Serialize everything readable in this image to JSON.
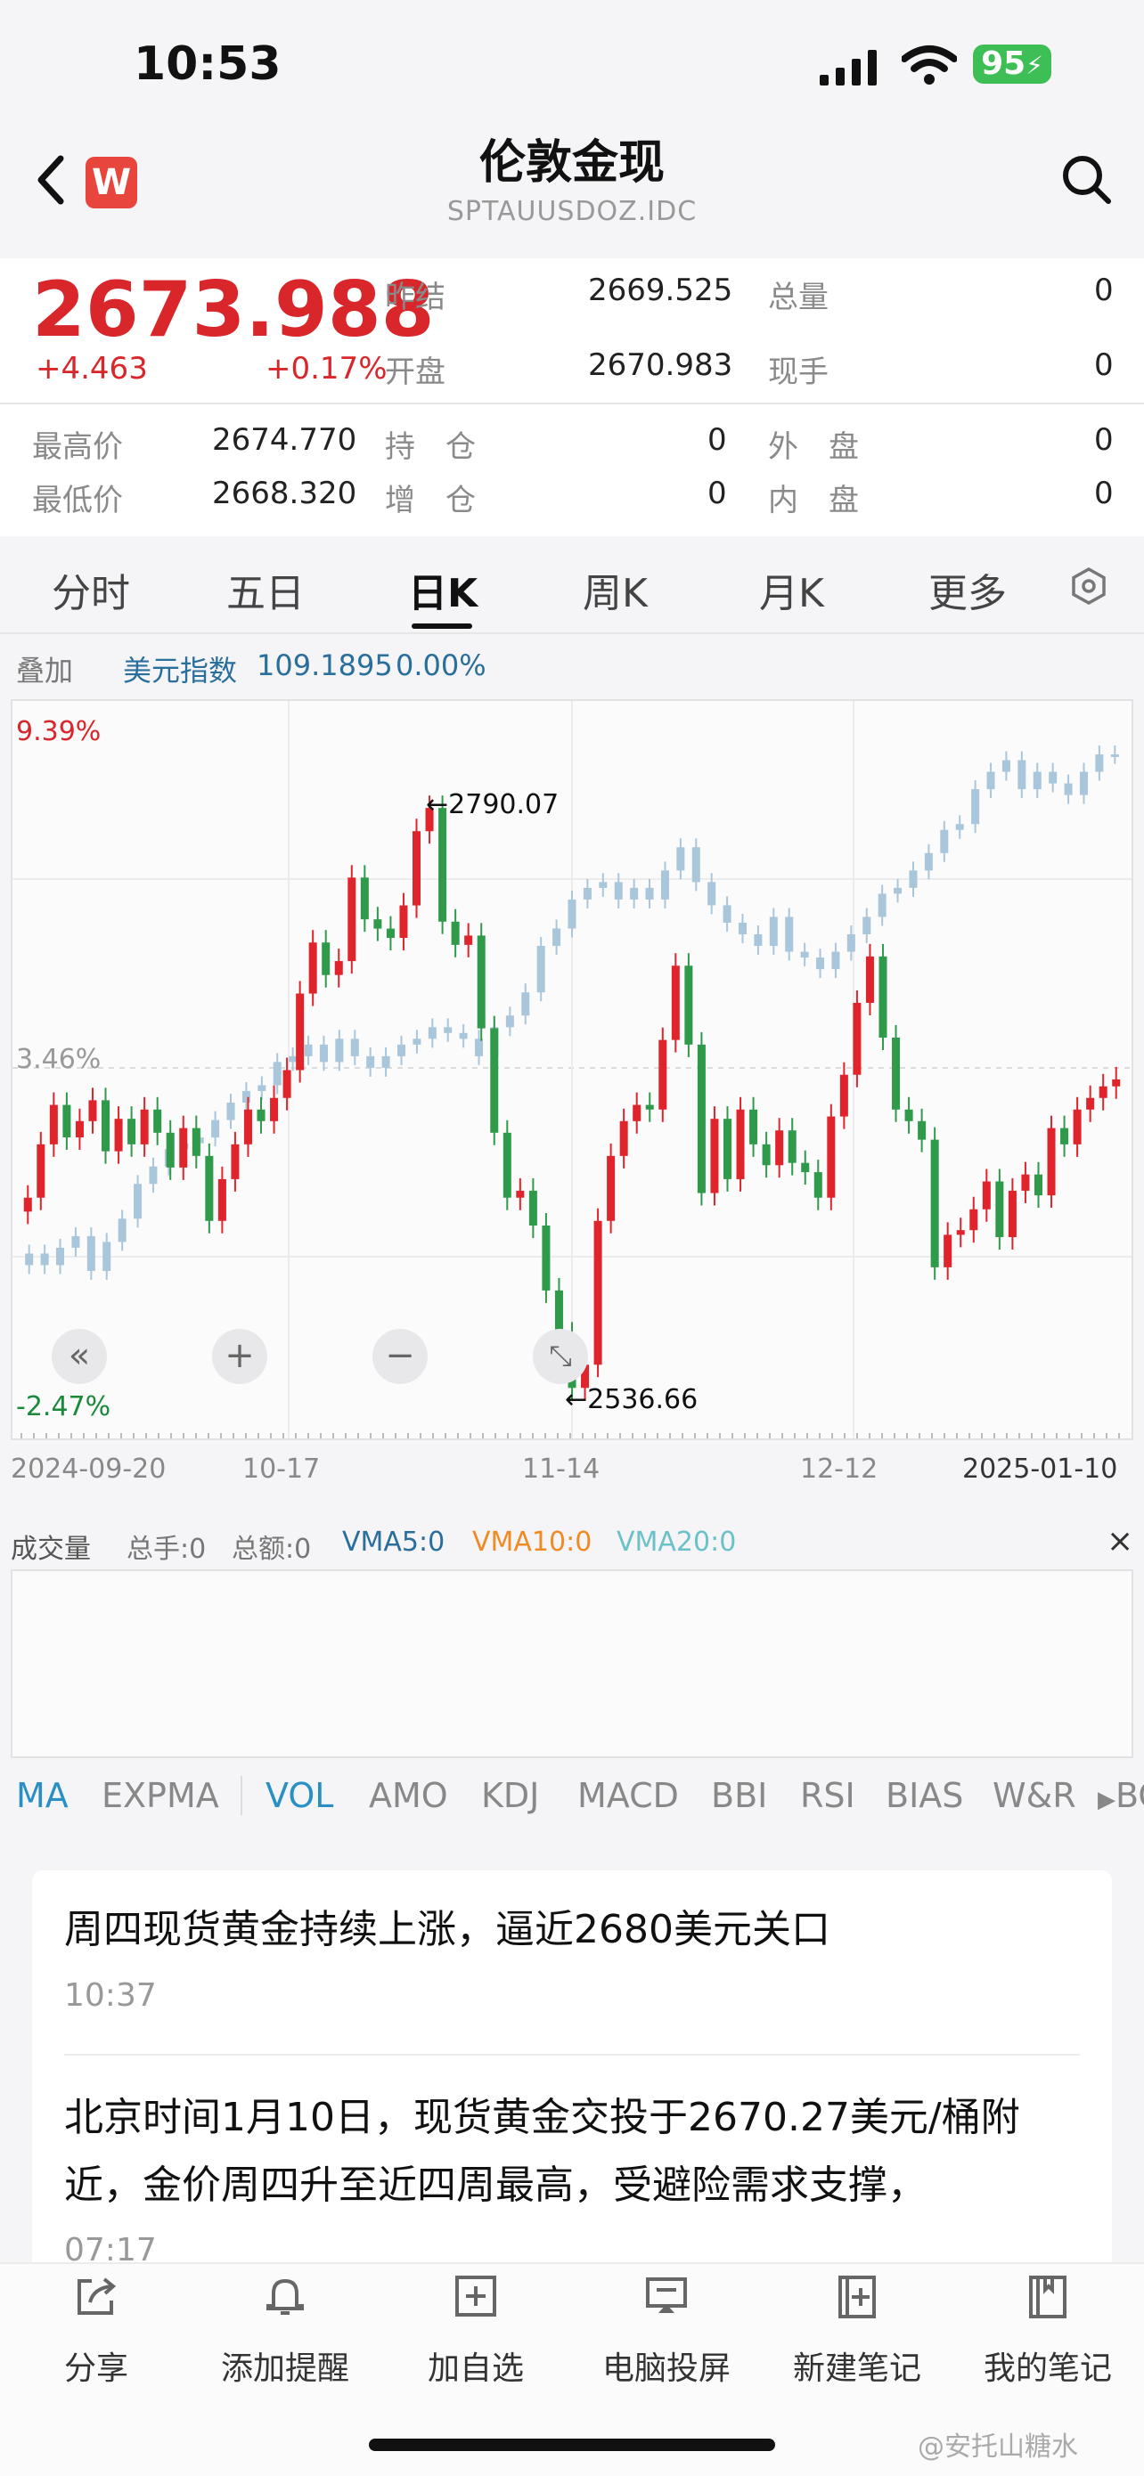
{
  "status": {
    "time": "10:53",
    "battery": "95"
  },
  "header": {
    "back_icon": "chevron-left-icon",
    "badge": "W",
    "title": "伦敦金现",
    "code": "SPTAUUSDOZ.IDC",
    "search_icon": "search-icon"
  },
  "quote": {
    "price": "2673.988",
    "change": "+4.463",
    "change_pct": "+0.17%",
    "prev_close_label": "昨结",
    "prev_close": "2669.525",
    "open_label": "开盘",
    "open": "2670.983",
    "total_vol_label": "总量",
    "total_vol": "0",
    "now_hand_label": "现手",
    "now_hand": "0",
    "high_label": "最高价",
    "high": "2674.770",
    "low_label": "最低价",
    "low": "2668.320",
    "hold_label": "持　仓",
    "hold": "0",
    "inc_label": "增　仓",
    "inc": "0",
    "outer_label": "外　盘",
    "outer": "0",
    "inner_label": "内　盘",
    "inner": "0"
  },
  "tabs": [
    "分时",
    "五日",
    "日K",
    "周K",
    "月K",
    "更多"
  ],
  "overlay": {
    "label": "叠加",
    "name": "美元指数",
    "value": "109.1895",
    "pct": "0.00%"
  },
  "chart_labels": {
    "pct_top": "9.39%",
    "pct_mid": "3.46%",
    "pct_bottom": "-2.47%",
    "max": "2790.07",
    "min": "2536.66",
    "dates": [
      "2024-09-20",
      "10-17",
      "11-14",
      "12-12",
      "2025-01-10"
    ]
  },
  "volume": {
    "label": "成交量",
    "total_hand": "总手:0",
    "total_amount": "总额:0",
    "vma5": "VMA5:0",
    "vma10": "VMA10:0",
    "vma20": "VMA20:0"
  },
  "indicators": [
    "MA",
    "EXPMA",
    "VOL",
    "AMO",
    "KDJ",
    "MACD",
    "BBI",
    "RSI",
    "BIAS",
    "W&R",
    "BO"
  ],
  "news": [
    {
      "title": "周四现货黄金持续上涨，逼近2680美元关口",
      "time": "10:37"
    },
    {
      "title": "北京时间1月10日，现货黄金交投于2670.27美元/桶附近，金价周四升至近四周最高，受避险需求支撑，",
      "time": "07:17"
    }
  ],
  "bottom": [
    {
      "label": "分享",
      "icon": "share-icon"
    },
    {
      "label": "添加提醒",
      "icon": "bell-icon"
    },
    {
      "label": "加自选",
      "icon": "add-watchlist-icon"
    },
    {
      "label": "电脑投屏",
      "icon": "screen-cast-icon"
    },
    {
      "label": "新建笔记",
      "icon": "new-note-icon"
    },
    {
      "label": "我的笔记",
      "icon": "notebook-icon"
    }
  ],
  "watermark": "@安托山糖水",
  "chart_data": {
    "type": "candlestick",
    "title": "伦敦金现 日K",
    "x_range": [
      "2024-09-20",
      "2025-01-10"
    ],
    "ylim": [
      2536.66,
      2790.07
    ],
    "max": 2790.07,
    "min": 2536.66,
    "series": [
      {
        "name": "伦敦金现",
        "ohlc_close": [
          2622,
          2645,
          2662,
          2648,
          2655,
          2664,
          2642,
          2656,
          2645,
          2660,
          2650,
          2635,
          2652,
          2640,
          2612,
          2630,
          2645,
          2660,
          2655,
          2665,
          2677,
          2710,
          2732,
          2718,
          2724,
          2760,
          2742,
          2738,
          2734,
          2748,
          2780,
          2790,
          2741,
          2731,
          2735,
          2695,
          2650,
          2622,
          2625,
          2610,
          2582,
          2563,
          2540,
          2550,
          2612,
          2640,
          2655,
          2662,
          2660,
          2690,
          2722,
          2688,
          2624,
          2656,
          2630,
          2660,
          2645,
          2636,
          2651,
          2637,
          2633,
          2622,
          2657,
          2675,
          2706,
          2726,
          2691,
          2660,
          2655,
          2647,
          2592,
          2606,
          2608,
          2617,
          2629,
          2605,
          2625,
          2632,
          2623,
          2652,
          2645,
          2660,
          2665,
          2670,
          2673
        ]
      },
      {
        "name": "美元指数",
        "ohlc_close": [
          100.6,
          100.4,
          100.7,
          100.9,
          100.3,
          100.8,
          101.2,
          101.8,
          102.1,
          102.4,
          102.5,
          102.6,
          102.9,
          103.2,
          103.4,
          103.5,
          103.9,
          104.0,
          104.2,
          103.9,
          104.3,
          104.0,
          103.8,
          104.0,
          104.2,
          104.3,
          104.5,
          104.4,
          104.3,
          104.0,
          104.5,
          104.7,
          105.1,
          105.9,
          106.2,
          106.7,
          106.9,
          107.0,
          106.7,
          106.9,
          106.7,
          107.2,
          107.6,
          107.0,
          106.6,
          106.3,
          106.1,
          105.9,
          106.4,
          105.8,
          105.7,
          105.5,
          105.8,
          106.1,
          106.4,
          106.8,
          106.9,
          107.2,
          107.5,
          107.9,
          108.0,
          108.6,
          108.9,
          109.1,
          108.6,
          108.9,
          108.7,
          108.5,
          108.9,
          109.2,
          109.19
        ]
      }
    ]
  }
}
